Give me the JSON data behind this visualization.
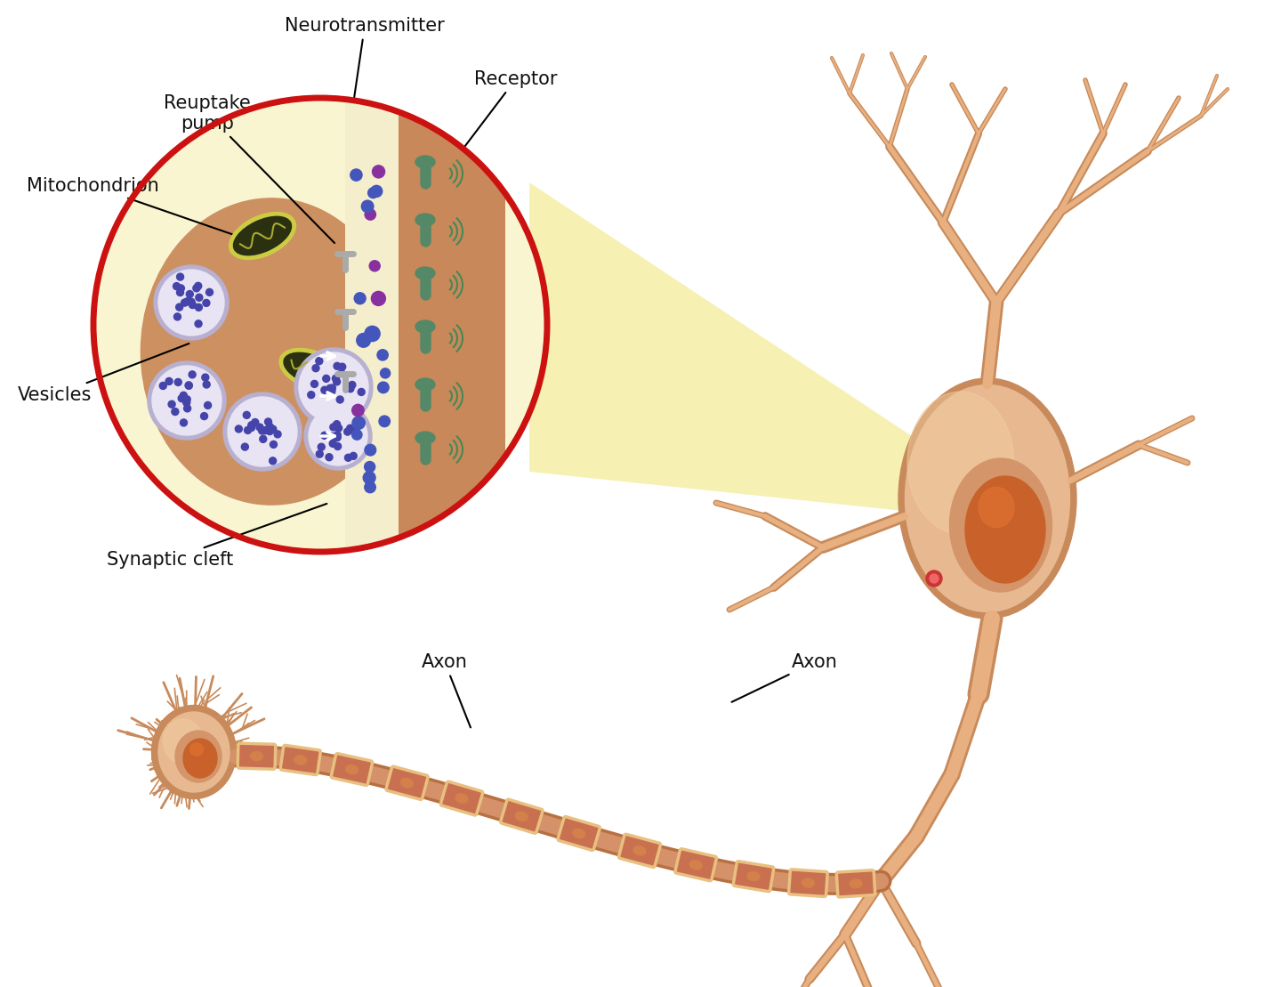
{
  "background_color": "#ffffff",
  "soma_color": "#e8b990",
  "soma_dark": "#c88a5a",
  "soma_light": "#f0cda0",
  "nucleus_outer": "#d4956a",
  "nucleus_inner": "#c8622a",
  "nucleus_bright": "#e07030",
  "axon_main": "#d4916a",
  "axon_dark": "#b87040",
  "myelin_color": "#c97050",
  "myelin_border": "#e8c080",
  "myelin_dot": "#d4804a",
  "synapse_bg": "#f8f5d0",
  "synapse_terminal": "#cd9060",
  "synapse_border": "#cc1111",
  "cleft_color": "#f5eecc",
  "post_membrane": "#c8885a",
  "mito_border": "#cccc44",
  "mito_fill": "#2a3010",
  "mito_inner": "#404820",
  "mito_line": "#aaaa30",
  "vesicle_outer": "#b8b0d0",
  "vesicle_inner": "#e8e4f4",
  "vesicle_dot": "#4444aa",
  "nt_dot_blue": "#4455bb",
  "nt_dot_purple": "#8830a0",
  "receptor_color": "#558866",
  "receptor_arc": "#448855",
  "reuptake_color": "#aaaaaa",
  "dendrite_color": "#c88a5a",
  "dendrite_light": "#e8b080",
  "red_circle": "#cc3333",
  "yellow_wedge": "#f5f0aa",
  "label_fs": 15,
  "labels": {
    "neurotransmitter": "Neurotransmitter",
    "reuptake_pump": "Reuptake\npump",
    "mitochondrion": "Mitochondrion",
    "vesicles": "Vesicles",
    "synaptic_cleft": "Synaptic cleft",
    "receptor": "Receptor",
    "axon1": "Axon",
    "axon2": "Axon"
  }
}
